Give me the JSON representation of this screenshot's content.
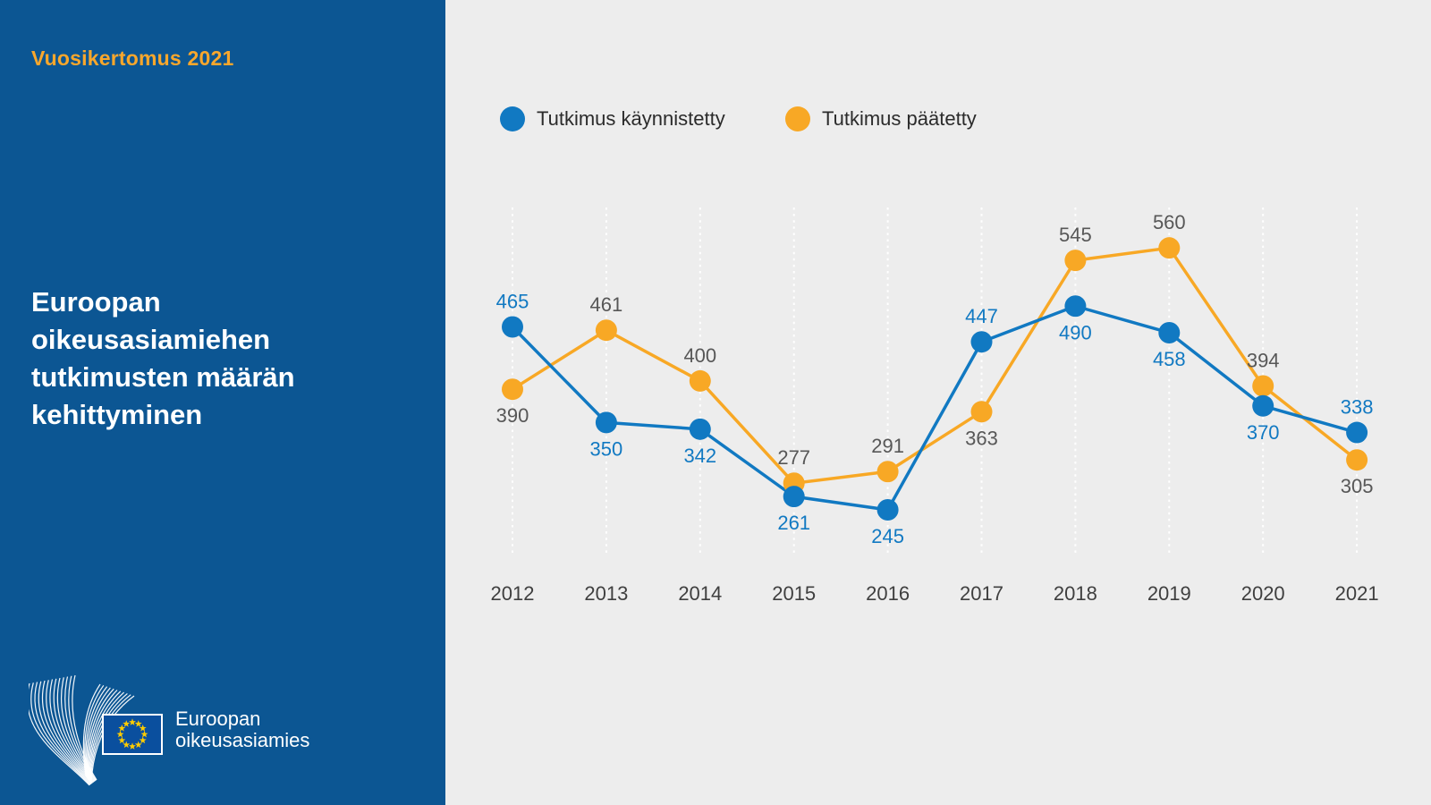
{
  "sidebar": {
    "eyebrow": "Vuosikertomus 2021",
    "title": "Euroopan oikeusasiamiehen tutkimusten määrän kehittyminen",
    "logo": {
      "line1": "Euroopan",
      "line2": "oikeusasiamies"
    }
  },
  "colors": {
    "sidebar_bg": "#0c5693",
    "panel_bg": "#ededed",
    "eyebrow_orange": "#f9a72c",
    "series_blue": "#1179c2",
    "series_orange": "#f8a825",
    "value_label_gray": "#575757",
    "axis_label_gray": "#3f3f3f",
    "eu_flag_blue": "#0a4f9e",
    "eu_star_yellow": "#ffcc00"
  },
  "chart_data": {
    "type": "line",
    "title": "Euroopan oikeusasiamiehen tutkimusten määrän kehittyminen",
    "categories": [
      "2012",
      "2013",
      "2014",
      "2015",
      "2016",
      "2017",
      "2018",
      "2019",
      "2020",
      "2021"
    ],
    "series": [
      {
        "name": "Tutkimus käynnistetty",
        "color": "#1179c2",
        "label_color": "#1179c2",
        "values": [
          465,
          350,
          342,
          261,
          245,
          447,
          490,
          458,
          370,
          338
        ]
      },
      {
        "name": "Tutkimus päätetty",
        "color": "#f8a825",
        "label_color": "#575757",
        "values": [
          390,
          461,
          400,
          277,
          291,
          363,
          545,
          560,
          394,
          305
        ]
      }
    ],
    "ylim": [
      160,
      600
    ],
    "xlabel": "",
    "ylabel": "",
    "grid": "vertical-dotted-white",
    "legend_position": "top",
    "point_labels": "higher-value-above, lower-value-below"
  }
}
